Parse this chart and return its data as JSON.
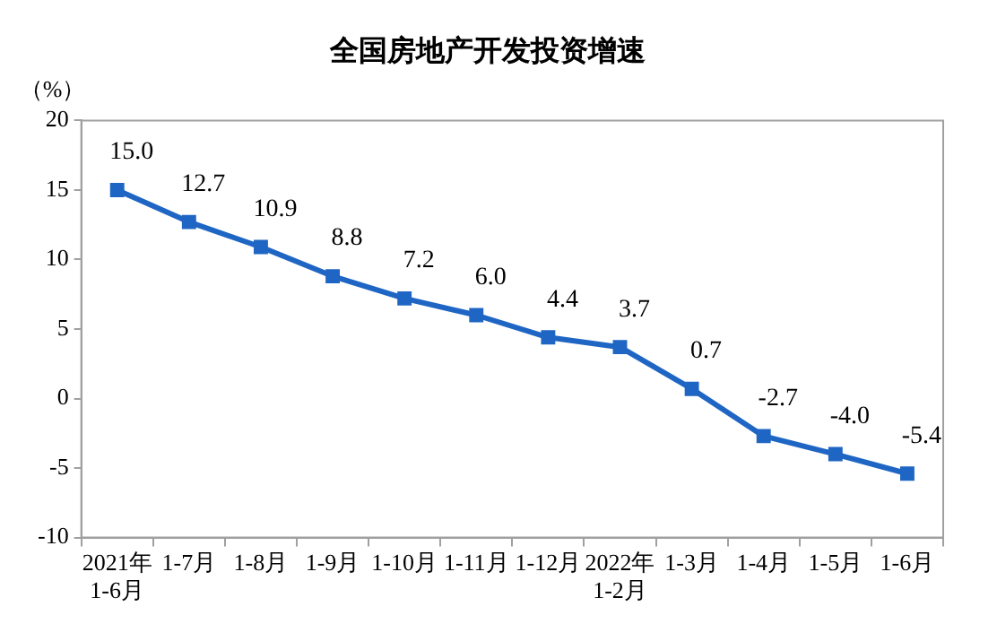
{
  "chart_data": {
    "type": "line",
    "title": "全国房地产开发投资增速",
    "ylabel": "（%）",
    "categories": [
      "2021年\n1-6月",
      "1-7月",
      "1-8月",
      "1-9月",
      "1-10月",
      "1-11月",
      "1-12月",
      "2022年\n1-2月",
      "1-3月",
      "1-4月",
      "1-5月",
      "1-6月"
    ],
    "series": [
      {
        "color": "#1f66c4",
        "values": [
          15.0,
          12.7,
          10.9,
          8.8,
          7.2,
          6.0,
          4.4,
          3.7,
          0.7,
          -2.7,
          -4.0,
          -5.4
        ],
        "value_labels": [
          "15.0",
          "12.7",
          "10.9",
          "8.8",
          "7.2",
          "6.0",
          "4.4",
          "3.7",
          "0.7",
          "-2.7",
          "-4.0",
          "-5.4"
        ]
      }
    ],
    "ylim": [
      -10,
      20
    ],
    "yticks": [
      -10,
      -5,
      0,
      5,
      10,
      15,
      20
    ],
    "grid": false,
    "legend": false,
    "marker": "square",
    "line_style": "solid"
  }
}
